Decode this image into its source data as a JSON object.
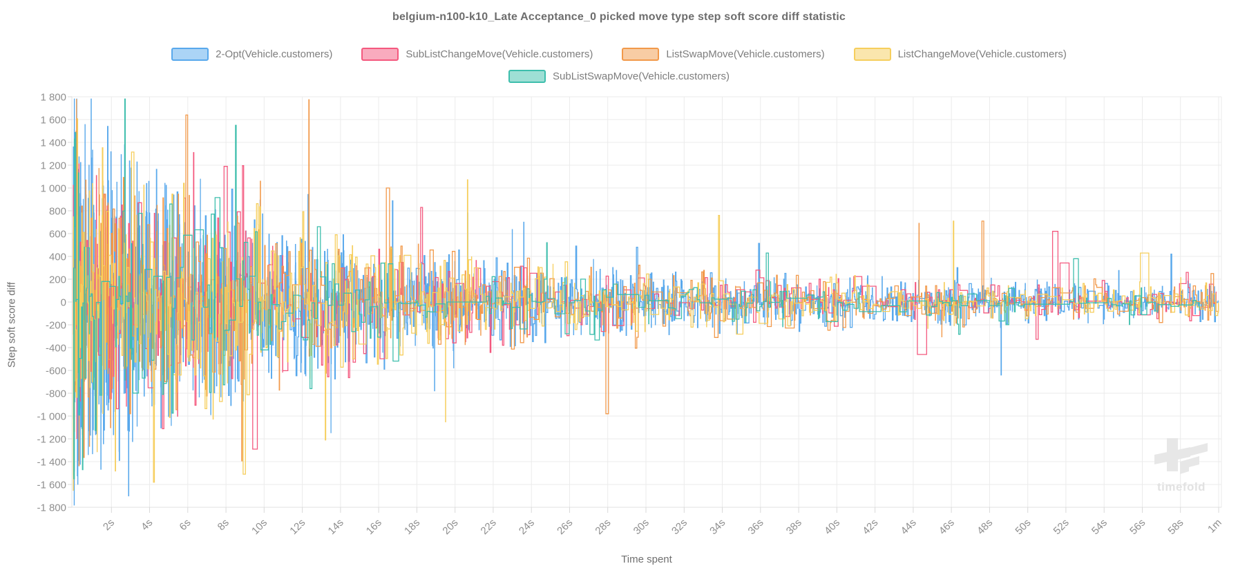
{
  "title": "belgium-n100-k10_Late Acceptance_0 picked move type step soft score diff statistic",
  "watermark": {
    "text": "timefold"
  },
  "chart_data": {
    "type": "line",
    "stepped": true,
    "title": "belgium-n100-k10_Late Acceptance_0 picked move type step soft score diff statistic",
    "xlabel": "Time spent",
    "ylabel": "Step soft score diff",
    "legend_position": "top",
    "grid": true,
    "ylim": [
      -1800,
      1800
    ],
    "xlim_seconds": [
      0,
      60
    ],
    "y_tick_labels": [
      "1 800",
      "1 600",
      "1 400",
      "1 200",
      "1 000",
      "800",
      "600",
      "400",
      "200",
      "0",
      "-200",
      "-400",
      "-600",
      "-800",
      "-1 000",
      "-1 200",
      "-1 400",
      "-1 600",
      "-1 800"
    ],
    "y_tick_values": [
      1800,
      1600,
      1400,
      1200,
      1000,
      800,
      600,
      400,
      200,
      0,
      -200,
      -400,
      -600,
      -800,
      -1000,
      -1200,
      -1400,
      -1600,
      -1800
    ],
    "x_tick_labels": [
      "2s",
      "4s",
      "6s",
      "8s",
      "10s",
      "12s",
      "14s",
      "16s",
      "18s",
      "20s",
      "22s",
      "24s",
      "26s",
      "28s",
      "30s",
      "32s",
      "34s",
      "36s",
      "38s",
      "40s",
      "42s",
      "44s",
      "46s",
      "48s",
      "50s",
      "52s",
      "54s",
      "56s",
      "58s",
      "1m"
    ],
    "x_tick_seconds": [
      2,
      4,
      6,
      8,
      10,
      12,
      14,
      16,
      18,
      20,
      22,
      24,
      26,
      28,
      30,
      32,
      34,
      36,
      38,
      40,
      42,
      44,
      46,
      48,
      50,
      52,
      54,
      56,
      58,
      60
    ],
    "description": "Noisy stepped soft-score-diff per picked move; amplitude envelope decays from about ±1800 near 0s to about ±250 near 60s with occasional spikes to ±700 late in the run.",
    "gen": {
      "base": 205,
      "amp": 1600,
      "tau": 12.5,
      "time_skew": 1.6,
      "spike_prob": 0.018,
      "spike_gain": 2.8
    },
    "series": [
      {
        "name": "2-Opt(Vehicle.customers)",
        "color": "#58a8ec",
        "fill": "#abd4f6",
        "points": 2600,
        "seed": 11,
        "anchors": [
          [
            1.8,
            1540
          ],
          [
            2.9,
            -1700
          ],
          [
            8.3,
            990
          ],
          [
            13.5,
            -1150
          ],
          [
            23.6,
            700
          ],
          [
            29.5,
            480
          ],
          [
            48.6,
            -640
          ],
          [
            57.5,
            420
          ]
        ]
      },
      {
        "name": "SubListChangeMove(Vehicle.customers)",
        "color": "#f4587e",
        "fill": "#f9abbe",
        "points": 560,
        "seed": 22,
        "anchors": [
          [
            0.3,
            1210
          ],
          [
            6.3,
            1310
          ],
          [
            7.9,
            1190
          ],
          [
            9.4,
            -1290
          ],
          [
            18.2,
            830
          ],
          [
            51.3,
            620
          ],
          [
            58.3,
            260
          ]
        ]
      },
      {
        "name": "ListSwapMove(Vehicle.customers)",
        "color": "#f2994a",
        "fill": "#f8cca4",
        "points": 820,
        "seed": 33,
        "anchors": [
          [
            0.15,
            1205
          ],
          [
            5.9,
            1640
          ],
          [
            9.8,
            1060
          ],
          [
            16.4,
            1000
          ],
          [
            27.9,
            -980
          ],
          [
            44.3,
            690
          ],
          [
            47.6,
            710
          ],
          [
            59.6,
            250
          ]
        ]
      },
      {
        "name": "ListChangeMove(Vehicle.customers)",
        "color": "#f6ce5c",
        "fill": "#fae6ad",
        "points": 820,
        "seed": 44,
        "anchors": [
          [
            1.2,
            640
          ],
          [
            4.2,
            -1580
          ],
          [
            8.9,
            -1510
          ],
          [
            13.2,
            -1210
          ],
          [
            19.5,
            -1050
          ],
          [
            33.8,
            760
          ],
          [
            46.1,
            710
          ],
          [
            55.9,
            430
          ]
        ]
      },
      {
        "name": "SubListSwapMove(Vehicle.customers)",
        "color": "#3dbeac",
        "fill": "#9edfd5",
        "points": 300,
        "seed": 55,
        "anchors": [
          [
            2.7,
            1780
          ],
          [
            8.5,
            1550
          ],
          [
            12.4,
            -760
          ],
          [
            24.8,
            520
          ],
          [
            36.3,
            430
          ],
          [
            52.4,
            380
          ]
        ]
      }
    ]
  }
}
